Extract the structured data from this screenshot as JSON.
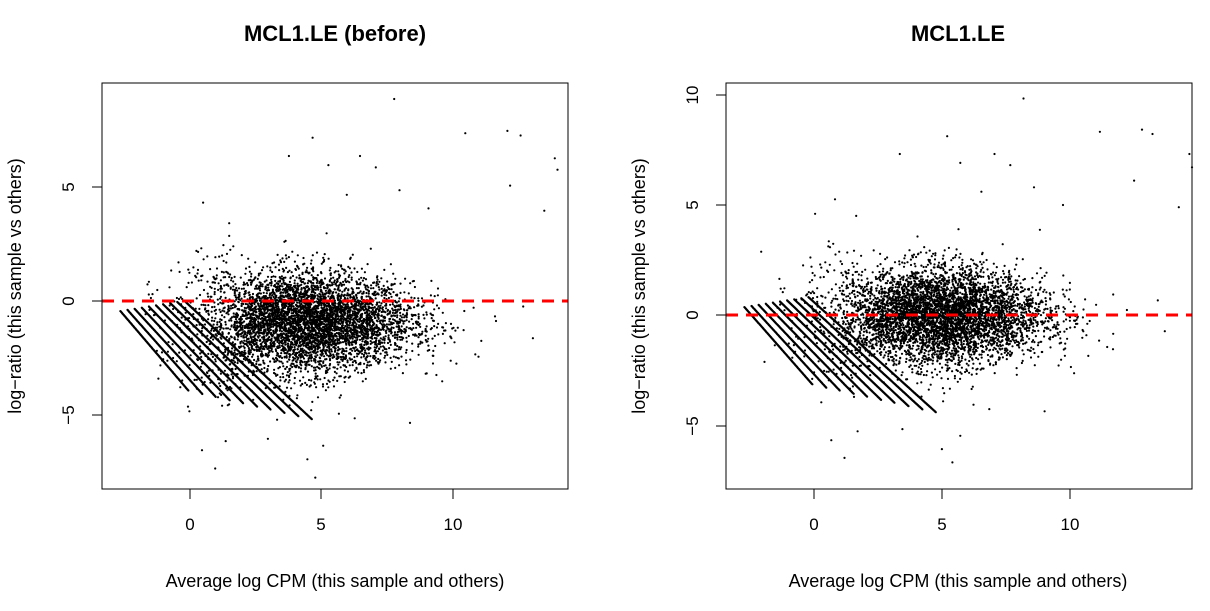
{
  "chart_data": [
    {
      "type": "scatter",
      "title": "MCL1.LE (before)",
      "xlabel": "Average log CPM (this sample and others)",
      "ylabel": "log−ratio (this sample vs others)",
      "xlim": [
        -3.5,
        14.2
      ],
      "ylim": [
        -8.2,
        9.6
      ],
      "xticks": [
        0,
        5,
        10
      ],
      "xtick_labels": [
        "0",
        "5",
        "10"
      ],
      "yticks": [
        -5,
        0,
        5
      ],
      "ytick_labels": [
        "−5",
        "0",
        "5"
      ],
      "reference_line": {
        "y": 0,
        "color": "#ff0000",
        "style": "dashed"
      },
      "point_color": "#000000",
      "point_cloud": {
        "n": 5200,
        "center_x": 4.3,
        "center_y": -0.9,
        "x_sd": 2.0,
        "y_sd": 1.15
      },
      "diagonal_bands": {
        "count": 10,
        "start_x": -2.8,
        "start_y": -0.4,
        "slope": -1.35
      },
      "series": [
        {
          "x": [
            7.6,
            4.5,
            11.9,
            12.4,
            10.3,
            13.7,
            13.8,
            13.3,
            12.0,
            6.3,
            6.9,
            5.1,
            5.8,
            3.6,
            8.9,
            7.8,
            4.6,
            10.8,
            12.5,
            9.2,
            8.2,
            6.1,
            4.3,
            4.9,
            5.5,
            2.8,
            1.2,
            0.8,
            0.3
          ],
          "y": [
            8.9,
            7.2,
            7.5,
            7.3,
            7.4,
            6.3,
            5.8,
            4.0,
            5.1,
            6.4,
            5.9,
            6.0,
            4.7,
            6.4,
            4.1,
            4.9,
            -7.7,
            -2.4,
            -0.2,
            -3.2,
            -5.3,
            -5.1,
            -6.9,
            -6.3,
            -4.9,
            -6.0,
            -6.1,
            -7.3,
            -6.5
          ]
        }
      ]
    },
    {
      "type": "scatter",
      "title": "MCL1.LE",
      "xlabel": "Average log CPM (this sample and others)",
      "ylabel": "log−ratio (this sample vs others)",
      "xlim": [
        -3.5,
        14.2
      ],
      "ylim": [
        -7.8,
        10.5
      ],
      "xticks": [
        0,
        5,
        10
      ],
      "xtick_labels": [
        "0",
        "5",
        "10"
      ],
      "yticks": [
        -5,
        0,
        5,
        10
      ],
      "ytick_labels": [
        "−5",
        "0",
        "5",
        "10"
      ],
      "reference_line": {
        "y": 0,
        "color": "#ff0000",
        "style": "dashed"
      },
      "point_color": "#000000",
      "point_cloud": {
        "n": 5200,
        "center_x": 4.6,
        "center_y": 0.0,
        "x_sd": 2.0,
        "y_sd": 1.15
      },
      "diagonal_bands": {
        "count": 10,
        "start_x": -2.8,
        "start_y": 0.4,
        "slope": -1.35
      },
      "series": [
        {
          "x": [
            7.8,
            4.9,
            12.3,
            12.7,
            10.7,
            14.1,
            14.2,
            13.7,
            12.0,
            6.7,
            7.3,
            5.4,
            6.2,
            3.1,
            9.3,
            8.2,
            5.1,
            11.2,
            12.9,
            9.6,
            8.6,
            6.5,
            4.7,
            5.4,
            5.9,
            3.2,
            1.5,
            1.0,
            0.5
          ],
          "y": [
            9.8,
            8.1,
            8.4,
            8.2,
            8.3,
            7.3,
            6.7,
            4.9,
            6.1,
            7.3,
            6.8,
            6.9,
            5.6,
            7.3,
            5.0,
            5.8,
            -6.6,
            -1.5,
            0.7,
            -2.3,
            -4.3,
            -4.2,
            -6.0,
            -5.4,
            -4.0,
            -5.1,
            -5.2,
            -6.4,
            -5.6
          ]
        }
      ]
    }
  ]
}
